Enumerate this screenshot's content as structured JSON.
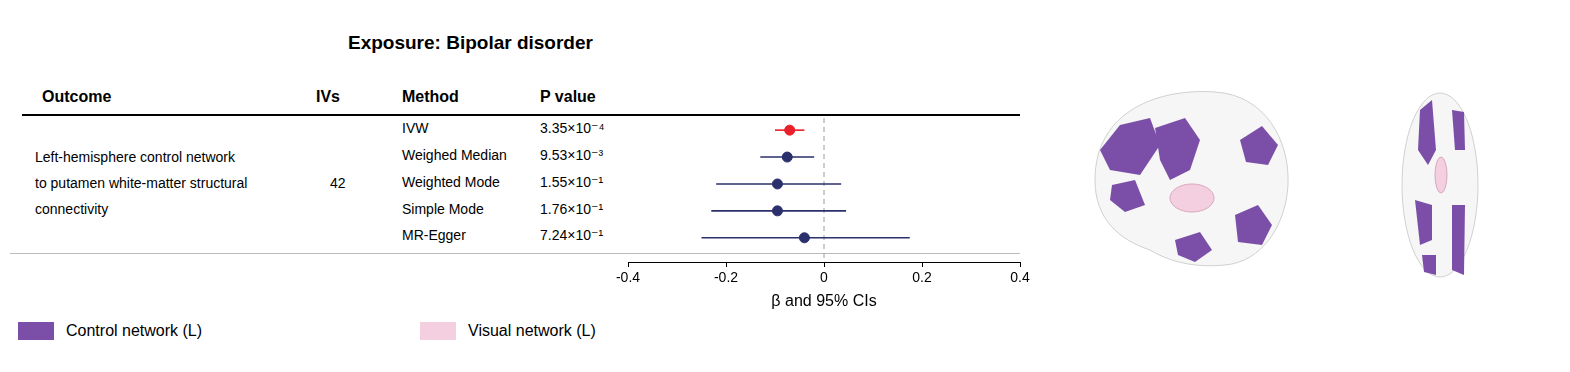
{
  "chart_data": {
    "type": "forest",
    "title": "Exposure: Bipolar disorder",
    "columns": [
      "Outcome",
      "IVs",
      "Method",
      "P value"
    ],
    "outcome": [
      "Left-hemisphere control network",
      "to putamen white-matter structural",
      "connectivity"
    ],
    "ivs": 42,
    "categories": [
      "IVW",
      "Weighed Median",
      "Weighted Mode",
      "Simple Mode",
      "MR-Egger"
    ],
    "values": [
      -0.07,
      -0.075,
      -0.095,
      -0.095,
      -0.04
    ],
    "ci_lower": [
      -0.1,
      -0.13,
      -0.22,
      -0.23,
      -0.25
    ],
    "ci_upper": [
      -0.04,
      -0.02,
      0.035,
      0.045,
      0.175
    ],
    "p_values": [
      "3.35×10⁻⁴",
      "9.53×10⁻³",
      "1.55×10⁻¹",
      "1.76×10⁻¹",
      "7.24×10⁻¹"
    ],
    "colors": [
      "#e8202a",
      "#2b2f6c",
      "#2b2f6c",
      "#2b2f6c",
      "#2b2f6c"
    ],
    "xlabel": "β and 95% CIs",
    "xlim": [
      -0.4,
      0.4
    ],
    "xticks": [
      -0.4,
      -0.2,
      0,
      0.2,
      0.4
    ],
    "ref_line": 0,
    "grid": false,
    "tick_labels": "x",
    "legend_items": [
      {
        "name": "Control network (L)",
        "color": "#7b4fa8"
      },
      {
        "name": "Visual network (L)",
        "color": "#f4cfe0"
      }
    ]
  }
}
